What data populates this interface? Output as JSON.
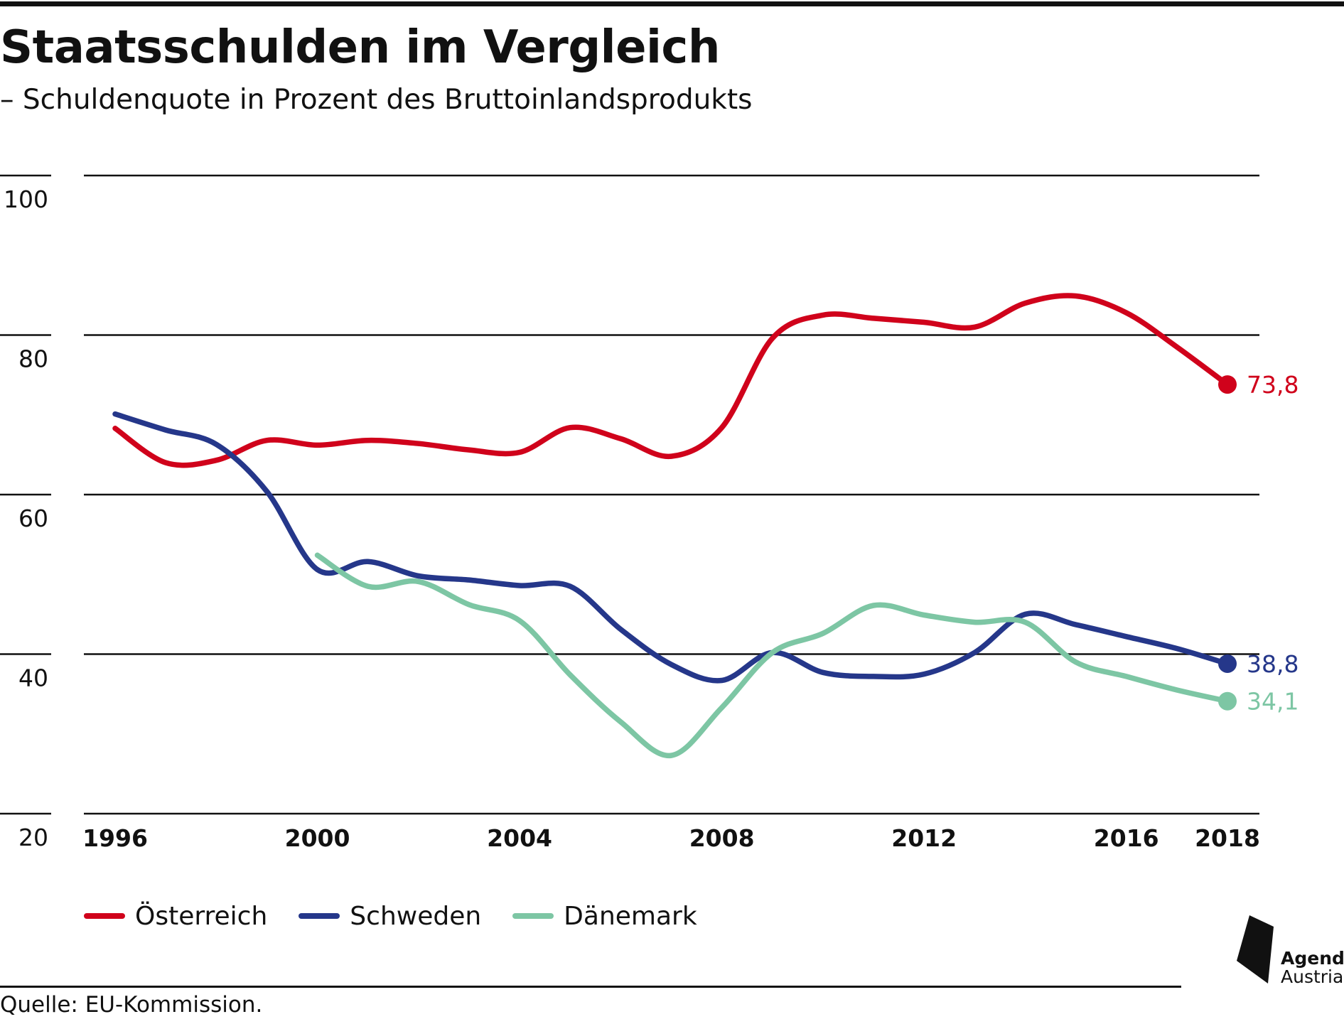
{
  "chart_data": {
    "type": "line",
    "title": "Staatsschulden im Vergleich",
    "subtitle": "– Schuldenquote in Prozent des Bruttoinlandsprodukts",
    "x": [
      1996,
      1997,
      1998,
      1999,
      2000,
      2001,
      2002,
      2003,
      2004,
      2005,
      2006,
      2007,
      2008,
      2009,
      2010,
      2011,
      2012,
      2013,
      2014,
      2015,
      2016,
      2017,
      2018
    ],
    "xticks": [
      1996,
      2000,
      2004,
      2008,
      2012,
      2016,
      2018
    ],
    "xtick_labels": [
      "1996",
      "2000",
      "2004",
      "2008",
      "2012",
      "2016",
      "2018"
    ],
    "yticks": [
      20,
      40,
      60,
      80,
      100
    ],
    "ytick_labels": [
      "20",
      "40",
      "60",
      "80",
      "100"
    ],
    "ylim": [
      20,
      100
    ],
    "xlim": [
      1996,
      2018
    ],
    "grid": "horizontal",
    "legend_position": "bottom-left",
    "series": [
      {
        "name": "Österreich",
        "color": "#d0021b",
        "values": [
          68.3,
          64.0,
          64.3,
          66.8,
          66.2,
          66.8,
          66.4,
          65.6,
          65.3,
          68.4,
          67.0,
          64.8,
          68.4,
          79.6,
          82.5,
          82.1,
          81.6,
          81.0,
          84.0,
          84.9,
          82.8,
          78.5,
          73.8
        ],
        "end_label": "73,8"
      },
      {
        "name": "Schweden",
        "color": "#25378a",
        "values": [
          70.1,
          68.1,
          66.3,
          60.4,
          50.6,
          51.6,
          49.8,
          49.3,
          48.6,
          48.5,
          43.1,
          38.7,
          36.7,
          40.2,
          37.7,
          37.2,
          37.5,
          40.2,
          45.0,
          43.7,
          42.2,
          40.7,
          38.8
        ],
        "end_label": "38,8"
      },
      {
        "name": "Dänemark",
        "color": "#7dc6a4",
        "x": [
          2000,
          2001,
          2002,
          2003,
          2004,
          2005,
          2006,
          2007,
          2008,
          2009,
          2010,
          2011,
          2012,
          2013,
          2014,
          2015,
          2016,
          2017,
          2018
        ],
        "values": [
          52.4,
          48.5,
          49.1,
          46.2,
          44.2,
          37.4,
          31.5,
          27.3,
          33.3,
          40.2,
          42.6,
          46.1,
          44.9,
          44.0,
          44.0,
          39.0,
          37.2,
          35.5,
          34.1
        ],
        "end_label": "34,1"
      }
    ]
  },
  "source": "Quelle: EU-Kommission.",
  "logo": {
    "word1": "Agenda",
    "word2": "Austria"
  }
}
